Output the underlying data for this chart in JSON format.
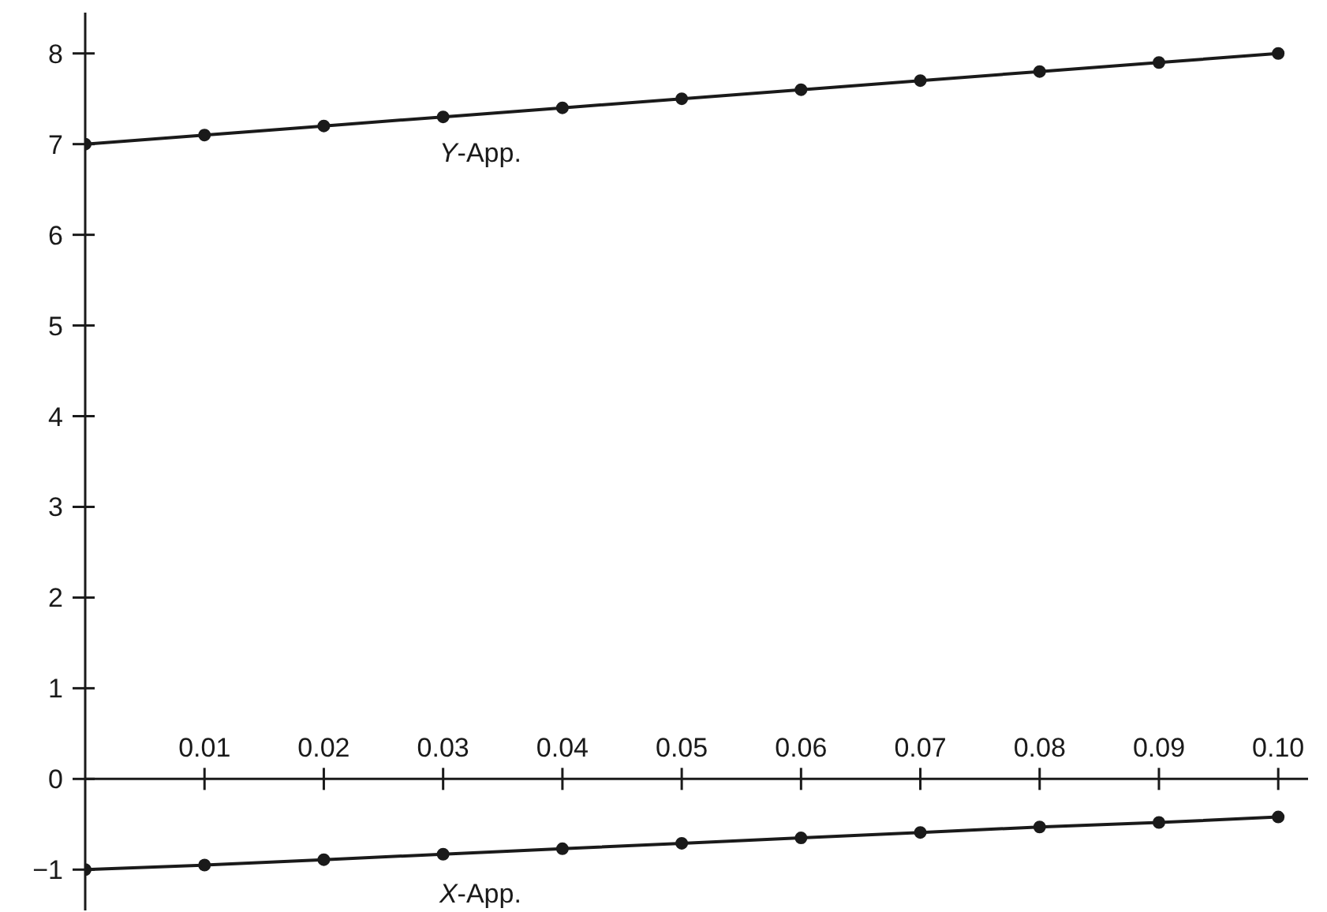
{
  "chart_data": {
    "type": "line",
    "x": [
      0,
      0.01,
      0.02,
      0.03,
      0.04,
      0.05,
      0.06,
      0.07,
      0.08,
      0.09,
      0.1
    ],
    "series": [
      {
        "color": "#1a1a1a",
        "values": [
          7,
          7.1,
          7.2,
          7.3,
          7.4,
          7.5,
          7.6,
          7.7,
          7.8,
          7.9,
          8
        ]
      },
      {
        "color": "#1a1a1a",
        "values": [
          -1,
          -0.95,
          -0.89,
          -0.83,
          -0.77,
          -0.71,
          -0.65,
          -0.59,
          -0.53,
          -0.48,
          -0.42
        ]
      }
    ],
    "xlim": [
      0,
      0.1025
    ],
    "xticks": [
      0.01,
      0.02,
      0.03,
      0.04,
      0.05,
      0.06,
      0.07,
      0.08,
      0.09,
      {
        "value": 0.1,
        "label": "0.10"
      }
    ],
    "ylim": [
      -1.45,
      8.45
    ],
    "yticks": [
      {
        "value": -1,
        "label": "−1"
      },
      0,
      1,
      2,
      3,
      4,
      5,
      6,
      7,
      8
    ],
    "marker": "circle",
    "line_style": "solid",
    "grid": false,
    "legend": false,
    "annotations": [
      "Y-App.",
      "X-App."
    ]
  }
}
